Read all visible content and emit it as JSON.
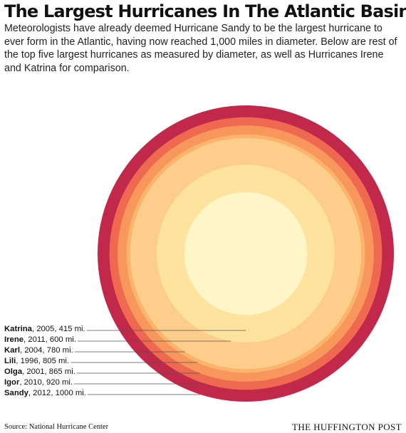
{
  "title": "The Largest Hurricanes In The Atlantic Basin",
  "subtitle": "Meteorologists have already deemed Hurricane Sandy to be the largest hurricane to ever form in the Atlantic, having now reached 1,000 miles in diameter. Below are rest of the top five largest hurricanes as measured by diameter, as well as Hurricanes Irene and Katrina for comparison.",
  "source": "Source: National Hurricane Center",
  "brand": "THE HUFFINGTON POST",
  "chart_data": {
    "type": "nested-circles",
    "unit": "mi.",
    "hurricanes": [
      {
        "name": "Katrina",
        "detail": ", 2005, 415 mi.",
        "year": 2005,
        "diameter": 415,
        "color": "#fff6c8"
      },
      {
        "name": "Irene",
        "detail": ", 2011, 600 mi.",
        "year": 2011,
        "diameter": 600,
        "color": "#fee39f"
      },
      {
        "name": "Karl",
        "detail": ", 2004, 780 mi.",
        "year": 2004,
        "diameter": 780,
        "color": "#fdcd8b"
      },
      {
        "name": "Lili",
        "detail": ", 1996, 805 mi.",
        "year": 1996,
        "diameter": 805,
        "color": "#fbb46c"
      },
      {
        "name": "Olga",
        "detail": ", 2001, 865 mi.",
        "year": 2001,
        "diameter": 865,
        "color": "#f8975c"
      },
      {
        "name": "Igor",
        "detail": ", 2010, 920 mi.",
        "year": 2010,
        "diameter": 920,
        "color": "#ef6950"
      },
      {
        "name": "Sandy",
        "detail": ", 2012, 1000 mi.",
        "year": 2012,
        "diameter": 1000,
        "color": "#c1284a"
      }
    ]
  }
}
